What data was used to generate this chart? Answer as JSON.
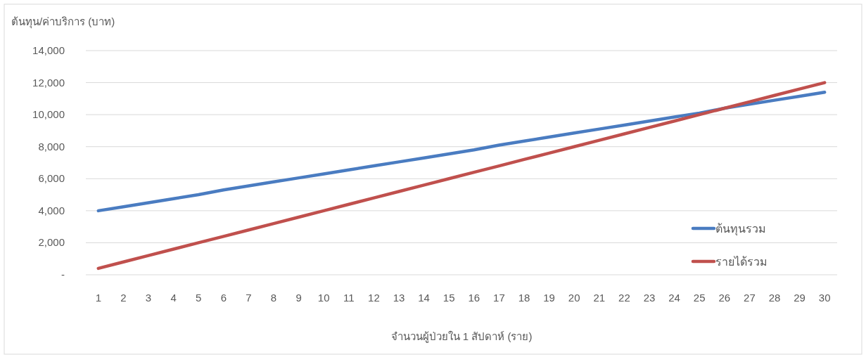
{
  "chart_data": {
    "type": "line",
    "ylabel": "ต้นทุน/ค่าบริการ (บาท)",
    "xlabel": "จำนวนผู้ป่วยใน 1 สัปดาห์ (ราย)",
    "categories": [
      "1",
      "2",
      "3",
      "4",
      "5",
      "6",
      "7",
      "8",
      "9",
      "10",
      "11",
      "12",
      "13",
      "14",
      "15",
      "16",
      "17",
      "18",
      "19",
      "20",
      "21",
      "22",
      "23",
      "24",
      "25",
      "26",
      "27",
      "28",
      "29",
      "30"
    ],
    "series": [
      {
        "name": "ต้นทุนรวม",
        "color": "#4a7cc1",
        "values": [
          4000,
          4250,
          4500,
          4750,
          5000,
          5300,
          5550,
          5800,
          6050,
          6300,
          6550,
          6800,
          7050,
          7300,
          7550,
          7800,
          8100,
          8350,
          8600,
          8850,
          9100,
          9350,
          9600,
          9850,
          10100,
          10400,
          10650,
          10900,
          11150,
          11400
        ]
      },
      {
        "name": "รายได้รวม",
        "color": "#c0504d",
        "values": [
          400,
          800,
          1200,
          1600,
          2000,
          2400,
          2800,
          3200,
          3600,
          4000,
          4400,
          4800,
          5200,
          5600,
          6000,
          6400,
          6800,
          7200,
          7600,
          8000,
          8400,
          8800,
          9200,
          9600,
          10000,
          10400,
          10800,
          11200,
          11600,
          12000
        ]
      }
    ],
    "ylim": [
      0,
      14000
    ],
    "yticks": [
      {
        "value": 0,
        "label": "-"
      },
      {
        "value": 2000,
        "label": "2,000"
      },
      {
        "value": 4000,
        "label": "4,000"
      },
      {
        "value": 6000,
        "label": "6,000"
      },
      {
        "value": 8000,
        "label": "8,000"
      },
      {
        "value": 10000,
        "label": "10,000"
      },
      {
        "value": 12000,
        "label": "12,000"
      },
      {
        "value": 14000,
        "label": "14,000"
      }
    ],
    "grid": "y",
    "legend": "right",
    "marker": "none",
    "line_style": "solid"
  }
}
